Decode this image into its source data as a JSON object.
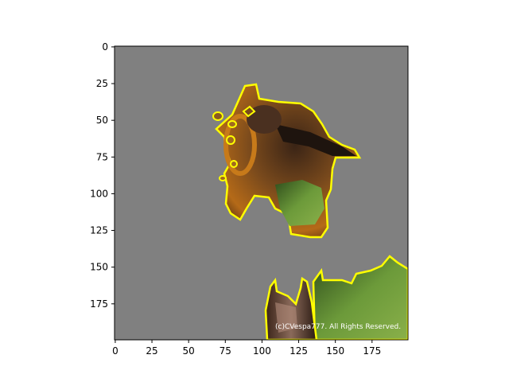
{
  "figure": {
    "watermark": "(c)CVespa777. All Rights Reserved."
  },
  "chart_data": {
    "type": "image",
    "x_ticks": [
      0,
      25,
      50,
      75,
      100,
      125,
      150,
      175
    ],
    "y_ticks": [
      0,
      25,
      50,
      75,
      100,
      125,
      150,
      175
    ],
    "xlim": [
      0,
      200
    ],
    "ylim": [
      200,
      0
    ],
    "background_color": "#808080",
    "outline_color": "#ffff00"
  }
}
